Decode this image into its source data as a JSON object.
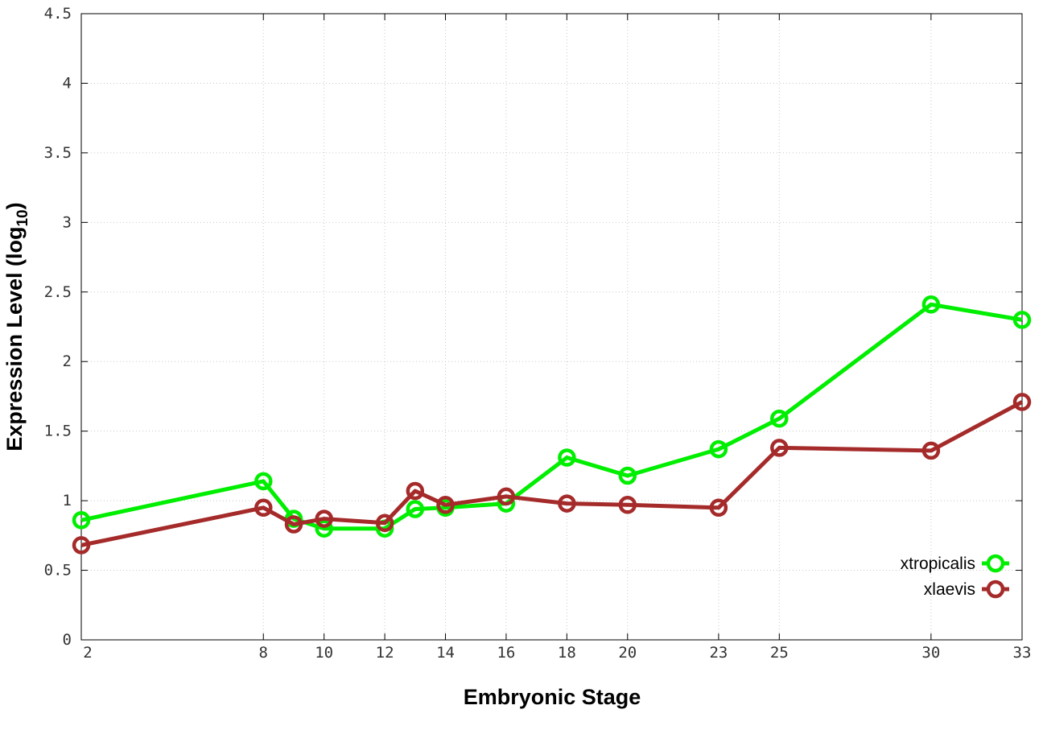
{
  "chart_data": {
    "type": "line",
    "xlabel": "Embryonic Stage",
    "ylabel_main": "Expression Level (log",
    "ylabel_sub": "10",
    "ylabel_close": ")",
    "categories": [
      "2",
      "8",
      "9",
      "10",
      "12",
      "13",
      "14",
      "16",
      "18",
      "20",
      "23",
      "25",
      "30",
      "33"
    ],
    "x_tick_labels": [
      "2",
      "8",
      "10",
      "12",
      "14",
      "16",
      "18",
      "20",
      "23",
      "25",
      "30",
      "33"
    ],
    "y_ticks": [
      0,
      0.5,
      1,
      1.5,
      2,
      2.5,
      3,
      3.5,
      4,
      4.5
    ],
    "y_tick_labels": [
      "0",
      "0.5",
      "1",
      "1.5",
      "2",
      "2.5",
      "3",
      "3.5",
      "4",
      "4.5"
    ],
    "ylim": [
      0,
      4.5
    ],
    "grid": true,
    "legend_position": "bottom-right",
    "series": [
      {
        "name": "xtropicalis",
        "color": "#00ee00",
        "values": [
          0.86,
          1.14,
          0.87,
          0.8,
          0.8,
          0.94,
          0.95,
          0.98,
          1.31,
          1.18,
          1.37,
          1.59,
          2.41,
          2.3
        ]
      },
      {
        "name": "xlaevis",
        "color": "#a52a2a",
        "values": [
          0.68,
          0.95,
          0.83,
          0.87,
          0.84,
          1.07,
          0.97,
          1.03,
          0.98,
          0.97,
          0.95,
          1.38,
          1.36,
          1.71
        ]
      }
    ]
  }
}
